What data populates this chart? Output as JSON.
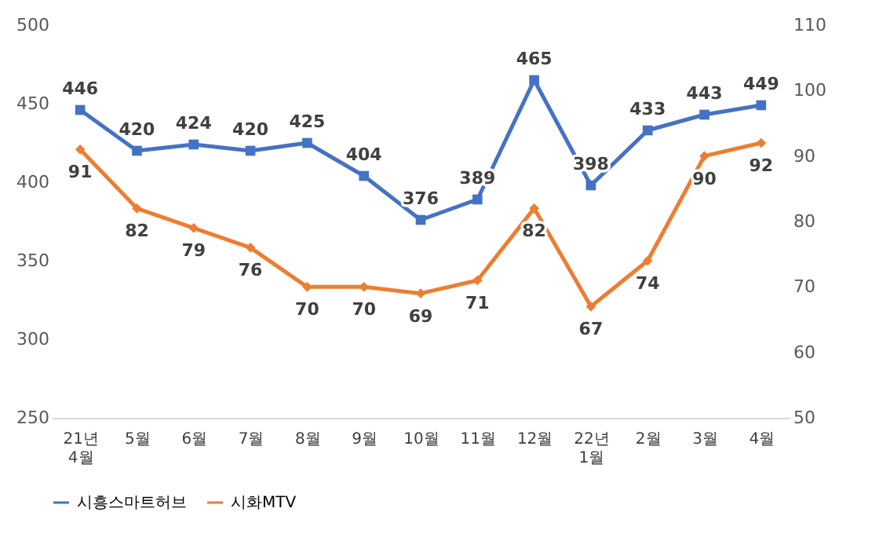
{
  "chart_data": {
    "type": "line",
    "categories": [
      "21년\n4월",
      "5월",
      "6월",
      "7월",
      "8월",
      "9월",
      "10월",
      "11월",
      "12월",
      "22년\n1월",
      "2월",
      "3월",
      "4월"
    ],
    "series": [
      {
        "name": "시흥스마트허브",
        "color": "#4472c4",
        "marker": "square",
        "values": [
          446,
          420,
          424,
          420,
          425,
          404,
          376,
          389,
          465,
          398,
          433,
          443,
          449
        ]
      },
      {
        "name": "시화MTV",
        "color": "#ed7d31",
        "marker": "diamond",
        "axis": "y2",
        "values": [
          91,
          82,
          79,
          76,
          70,
          70,
          69,
          71,
          82,
          67,
          74,
          90,
          92
        ]
      }
    ],
    "ylim": [
      250,
      500
    ],
    "yticks": [
      250,
      300,
      350,
      400,
      450,
      500
    ],
    "y2lim": [
      50,
      110
    ],
    "y2ticks": [
      50,
      60,
      70,
      80,
      90,
      100,
      110
    ],
    "data_labels": true,
    "grid": false,
    "legend": "bottom",
    "line_style": "solid"
  }
}
